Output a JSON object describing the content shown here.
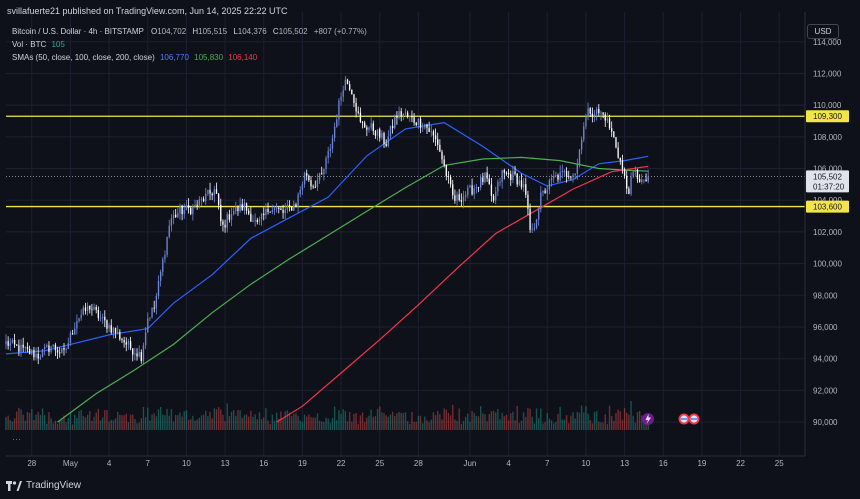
{
  "publisher_line": "svillafuerte21 published on TradingView.com, Jun 14, 2025 22:22 UTC",
  "currency_button": "USD",
  "footer_brand": "TradingView",
  "legend": {
    "symbol": "Bitcoin / U.S. Dollar · 4h · BITSTAMP",
    "ohlc": {
      "open_label": "O",
      "open": "104,702",
      "high_label": "H",
      "high": "105,515",
      "low_label": "L",
      "low": "104,376",
      "close_label": "C",
      "close": "105,502",
      "change": "+807 (+0.77%)"
    },
    "volume": {
      "label": "Vol · BTC",
      "value": "105"
    },
    "sma": {
      "label": "SMAs (50, close, 100, close, 200, close)",
      "values": [
        "106,770",
        "105,830",
        "106,140"
      ]
    }
  },
  "colors": {
    "background": "#0f111a",
    "grid": "#1c2030",
    "candle_up": "#6f86d6",
    "candle_down": "#ffffff",
    "sma50": "#2962ff",
    "sma100": "#4caf50",
    "sma200": "#f23645",
    "level_line": "#f2e54a",
    "volume_up": "#26a69a",
    "volume_down": "#ef5350"
  },
  "chart_data": {
    "type": "candlestick",
    "symbol": "Bitcoin / U.S. Dollar",
    "interval": "4h",
    "exchange": "BITSTAMP",
    "ylim": [
      89500,
      115500
    ],
    "y_ticks": [
      90000,
      92000,
      94000,
      96000,
      98000,
      100000,
      102000,
      104000,
      106000,
      108000,
      110000,
      112000,
      114000
    ],
    "y_tick_labels": [
      "90,000",
      "92,000",
      "94,000",
      "96,000",
      "98,000",
      "100,000",
      "102,000",
      "104,000",
      "106,000",
      "108,000",
      "110,000",
      "112,000",
      "114,000"
    ],
    "x_tick_labels": [
      "28",
      "May",
      "4",
      "7",
      "10",
      "13",
      "16",
      "19",
      "22",
      "25",
      "28",
      "Jun",
      "4",
      "7",
      "10",
      "13",
      "16",
      "19",
      "22",
      "25"
    ],
    "x_tick_dates": [
      "2025-04-28",
      "2025-05-01",
      "2025-05-04",
      "2025-05-07",
      "2025-05-10",
      "2025-05-13",
      "2025-05-16",
      "2025-05-19",
      "2025-05-22",
      "2025-05-25",
      "2025-05-28",
      "2025-06-01",
      "2025-06-04",
      "2025-06-07",
      "2025-06-10",
      "2025-06-13",
      "2025-06-16",
      "2025-06-19",
      "2025-06-22",
      "2025-06-25"
    ],
    "x_start": "2025-04-26",
    "x_end": "2025-06-27",
    "horizontal_levels": [
      {
        "value": 109300,
        "label": "109,300"
      },
      {
        "value": 103600,
        "label": "103,600"
      }
    ],
    "last_price": {
      "value": 105502,
      "label": "105,502",
      "countdown": "01:37:20"
    },
    "close_anchors": [
      [
        "2025-04-26T00",
        95000
      ],
      [
        "2025-04-27T12",
        94500
      ],
      [
        "2025-04-28T12",
        94200
      ],
      [
        "2025-04-29T12",
        94800
      ],
      [
        "2025-04-30T12",
        94300
      ],
      [
        "2025-05-01T12",
        96500
      ],
      [
        "2025-05-02T12",
        97300
      ],
      [
        "2025-05-03T12",
        96400
      ],
      [
        "2025-05-04T12",
        95700
      ],
      [
        "2025-05-05T12",
        94800
      ],
      [
        "2025-05-06T12",
        94200
      ],
      [
        "2025-05-07T00",
        96600
      ],
      [
        "2025-05-07T12",
        97200
      ],
      [
        "2025-05-08T06",
        100500
      ],
      [
        "2025-05-08T18",
        102800
      ],
      [
        "2025-05-09T12",
        103300
      ],
      [
        "2025-05-10T12",
        103500
      ],
      [
        "2025-05-11T12",
        104200
      ],
      [
        "2025-05-12T06",
        104700
      ],
      [
        "2025-05-12T18",
        102200
      ],
      [
        "2025-05-13T12",
        103300
      ],
      [
        "2025-05-14T12",
        103600
      ],
      [
        "2025-05-15T12",
        102400
      ],
      [
        "2025-05-16T12",
        103600
      ],
      [
        "2025-05-17T12",
        103200
      ],
      [
        "2025-05-18T12",
        103800
      ],
      [
        "2025-05-19T06",
        105800
      ],
      [
        "2025-05-19T18",
        104900
      ],
      [
        "2025-05-20T12",
        105500
      ],
      [
        "2025-05-21T06",
        107600
      ],
      [
        "2025-05-21T18",
        109700
      ],
      [
        "2025-05-22T06",
        111600
      ],
      [
        "2025-05-22T18",
        111200
      ],
      [
        "2025-05-23T12",
        108800
      ],
      [
        "2025-05-24T12",
        108500
      ],
      [
        "2025-05-25T12",
        107600
      ],
      [
        "2025-05-26T06",
        109300
      ],
      [
        "2025-05-26T18",
        109500
      ],
      [
        "2025-05-27T12",
        109100
      ],
      [
        "2025-05-28T12",
        108800
      ],
      [
        "2025-05-29T12",
        107600
      ],
      [
        "2025-05-30T06",
        105400
      ],
      [
        "2025-05-30T18",
        104000
      ],
      [
        "2025-05-31T12",
        104300
      ],
      [
        "2025-06-01T12",
        104900
      ],
      [
        "2025-06-02T06",
        105500
      ],
      [
        "2025-06-02T18",
        103800
      ],
      [
        "2025-06-03T12",
        105700
      ],
      [
        "2025-06-04T12",
        105500
      ],
      [
        "2025-06-05T06",
        104700
      ],
      [
        "2025-06-05T18",
        101600
      ],
      [
        "2025-06-06T12",
        104200
      ],
      [
        "2025-06-07T12",
        105400
      ],
      [
        "2025-06-08T12",
        105700
      ],
      [
        "2025-06-09T06",
        105800
      ],
      [
        "2025-06-09T18",
        108600
      ],
      [
        "2025-06-10T06",
        109700
      ],
      [
        "2025-06-10T18",
        109600
      ],
      [
        "2025-06-11T12",
        109300
      ],
      [
        "2025-06-12T06",
        107700
      ],
      [
        "2025-06-12T18",
        106200
      ],
      [
        "2025-06-13T06",
        104500
      ],
      [
        "2025-06-13T18",
        105800
      ],
      [
        "2025-06-14T12",
        105000
      ],
      [
        "2025-06-14T20",
        105502
      ]
    ],
    "series": [
      {
        "name": "SMA 50",
        "label": "50",
        "color": "#2962ff",
        "last": 106770,
        "points": [
          [
            "2025-04-26T00",
            94300
          ],
          [
            "2025-04-29T00",
            94500
          ],
          [
            "2025-05-01T00",
            94900
          ],
          [
            "2025-05-04T00",
            95500
          ],
          [
            "2025-05-07T00",
            95900
          ],
          [
            "2025-05-09T00",
            97500
          ],
          [
            "2025-05-12T00",
            99300
          ],
          [
            "2025-05-15T00",
            101600
          ],
          [
            "2025-05-18T00",
            102900
          ],
          [
            "2025-05-21T00",
            104200
          ],
          [
            "2025-05-24T00",
            106800
          ],
          [
            "2025-05-27T00",
            108500
          ],
          [
            "2025-05-30T00",
            108900
          ],
          [
            "2025-06-02T00",
            107400
          ],
          [
            "2025-06-05T00",
            105700
          ],
          [
            "2025-06-07T00",
            104900
          ],
          [
            "2025-06-09T00",
            105300
          ],
          [
            "2025-06-11T00",
            106300
          ],
          [
            "2025-06-13T00",
            106500
          ],
          [
            "2025-06-14T20",
            106770
          ]
        ]
      },
      {
        "name": "SMA 100",
        "label": "100",
        "color": "#4caf50",
        "last": 105830,
        "points": [
          [
            "2025-04-30T00",
            90000
          ],
          [
            "2025-05-03T00",
            91800
          ],
          [
            "2025-05-06T00",
            93300
          ],
          [
            "2025-05-09T00",
            94900
          ],
          [
            "2025-05-12T00",
            96900
          ],
          [
            "2025-05-15T00",
            98700
          ],
          [
            "2025-05-18T00",
            100300
          ],
          [
            "2025-05-21T00",
            101800
          ],
          [
            "2025-05-24T00",
            103300
          ],
          [
            "2025-05-27T00",
            104800
          ],
          [
            "2025-05-30T00",
            106200
          ],
          [
            "2025-06-02T00",
            106600
          ],
          [
            "2025-06-05T00",
            106700
          ],
          [
            "2025-06-08T00",
            106500
          ],
          [
            "2025-06-11T00",
            106000
          ],
          [
            "2025-06-13T00",
            105900
          ],
          [
            "2025-06-14T20",
            105830
          ]
        ]
      },
      {
        "name": "SMA 200",
        "label": "200",
        "color": "#f23645",
        "last": 106140,
        "points": [
          [
            "2025-05-17T00",
            90000
          ],
          [
            "2025-05-19T00",
            91000
          ],
          [
            "2025-05-22T00",
            93100
          ],
          [
            "2025-05-25T00",
            95200
          ],
          [
            "2025-05-28T00",
            97400
          ],
          [
            "2025-05-31T00",
            99700
          ],
          [
            "2025-06-03T00",
            101900
          ],
          [
            "2025-06-06T00",
            103300
          ],
          [
            "2025-06-09T00",
            104700
          ],
          [
            "2025-06-12T00",
            105800
          ],
          [
            "2025-06-14T20",
            106140
          ]
        ]
      }
    ]
  }
}
